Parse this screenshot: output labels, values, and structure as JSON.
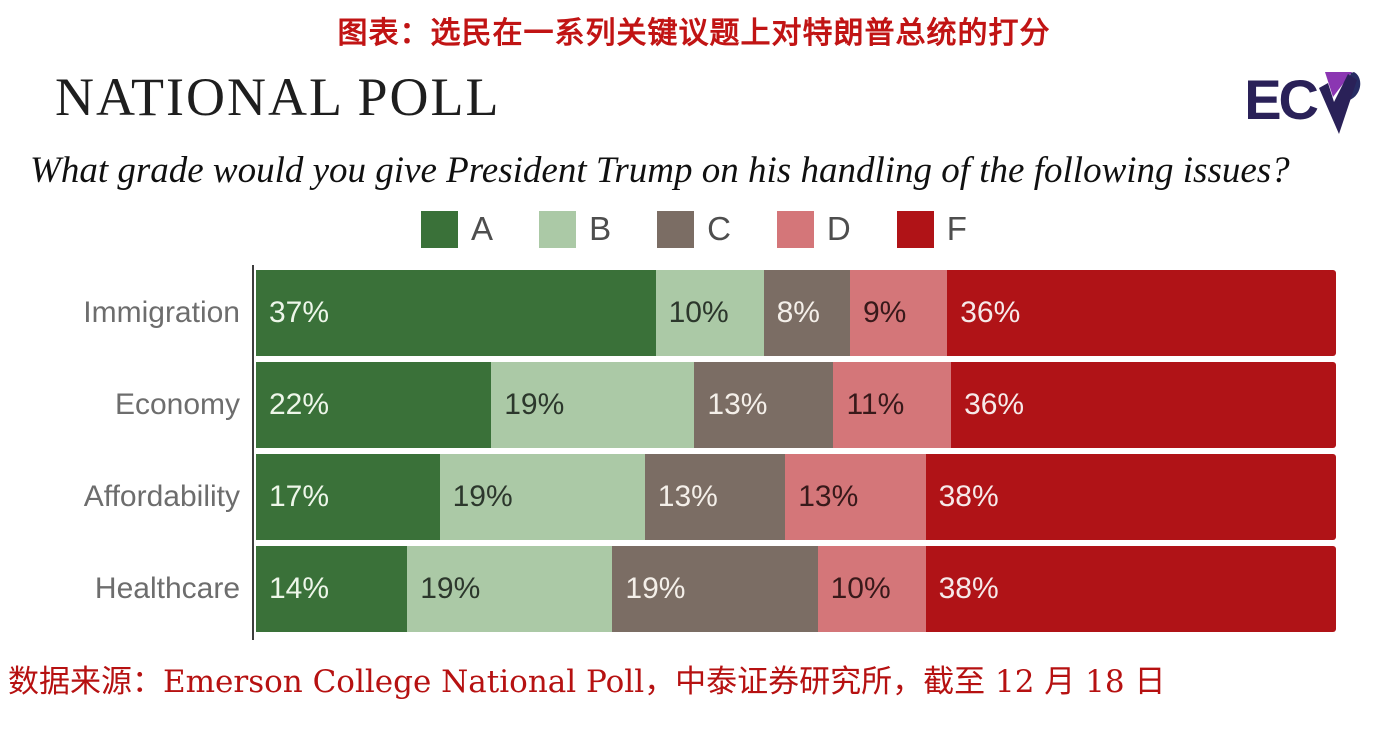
{
  "header": {
    "title": "图表：选民在一系列关键议题上对特朗普总统的打分"
  },
  "poll": {
    "title": "NATIONAL POLL",
    "subtitle": "What grade would you give President Trump on his handling of the following issues?",
    "logo_text": "EC",
    "logo_letter": "P"
  },
  "colors": {
    "title_red": "#c11414",
    "footer_red": "#b61111",
    "axis": "#3e3e3e",
    "logo_navy": "#2a2158",
    "logo_purple": "#8b36b2",
    "logo_blue": "#272c63"
  },
  "chart_data": {
    "type": "bar",
    "stacked": true,
    "orientation": "horizontal",
    "title": "NATIONAL POLL",
    "subtitle": "What grade would you give President Trump on his handling of the following issues?",
    "categories": [
      "Immigration",
      "Economy",
      "Affordability",
      "Healthcare"
    ],
    "series": [
      {
        "name": "A",
        "color": "#3a7139",
        "text_color": "#edf6e9",
        "values": [
          37,
          22,
          17,
          14
        ]
      },
      {
        "name": "B",
        "color": "#abc9a6",
        "text_color": "#2c372c",
        "values": [
          10,
          19,
          19,
          19
        ]
      },
      {
        "name": "C",
        "color": "#7b6d64",
        "text_color": "#f4efe9",
        "values": [
          8,
          13,
          13,
          19
        ]
      },
      {
        "name": "D",
        "color": "#d47679",
        "text_color": "#38191a",
        "values": [
          9,
          11,
          13,
          10
        ]
      },
      {
        "name": "F",
        "color": "#b01317",
        "text_color": "#f6e9e9",
        "values": [
          36,
          36,
          38,
          38
        ]
      }
    ],
    "value_suffix": "%",
    "legend_position": "top-center",
    "xlim": [
      0,
      100
    ],
    "grid": false
  },
  "footer": {
    "source": "数据来源：Emerson College National Poll，中泰证券研究所，截至 12 月 18 日"
  }
}
